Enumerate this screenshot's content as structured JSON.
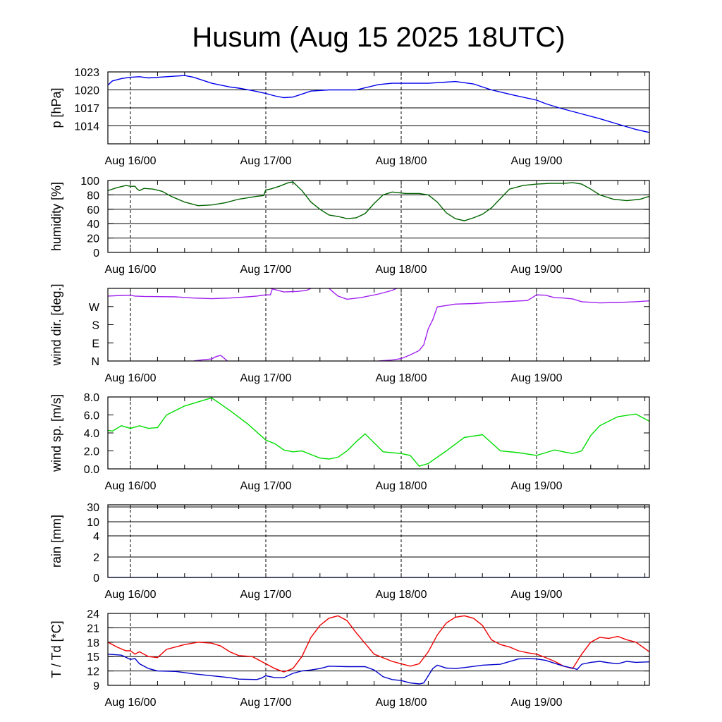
{
  "chart_data": {
    "type": "line",
    "title": "Husum (Aug 15 2025 18UTC)",
    "x_range_hours": [
      -5,
      115
    ],
    "x_ticks": [
      {
        "hour": 0,
        "label": "Aug 16/00"
      },
      {
        "hour": 30,
        "label": "Aug 17/00"
      },
      {
        "hour": 60,
        "label": "Aug 18/00"
      },
      {
        "hour": 90,
        "label": "Aug 19/00"
      }
    ],
    "panels": [
      {
        "id": "pressure",
        "ylabel": "p [hPa]",
        "ylim": [
          1011,
          1023
        ],
        "yticks": [
          {
            "v": 1023,
            "label": "1023"
          },
          {
            "v": 1020,
            "label": "1020"
          },
          {
            "v": 1017,
            "label": "1017"
          },
          {
            "v": 1014,
            "label": "1014"
          }
        ],
        "gridlines": [
          1023,
          1020,
          1017,
          1014
        ],
        "series": [
          {
            "color": "#0000ee",
            "x": [
              -5,
              -4,
              -2,
              0,
              2,
              4,
              8,
              12,
              14,
              18,
              22,
              24,
              27,
              30,
              32,
              34,
              36,
              40,
              44,
              50,
              55,
              58,
              62,
              66,
              72,
              76,
              80,
              85,
              90,
              92,
              95,
              100,
              104,
              108,
              112,
              115
            ],
            "y": [
              1020.8,
              1021.5,
              1021.9,
              1022.1,
              1022.2,
              1022.0,
              1022.2,
              1022.4,
              1022.1,
              1021.1,
              1020.5,
              1020.3,
              1019.9,
              1019.4,
              1019.0,
              1018.7,
              1018.8,
              1019.8,
              1020.0,
              1020.0,
              1020.9,
              1021.1,
              1021.1,
              1021.1,
              1021.4,
              1021.0,
              1020.0,
              1019.1,
              1018.3,
              1017.7,
              1017.0,
              1016.0,
              1015.2,
              1014.3,
              1013.4,
              1012.9
            ]
          }
        ]
      },
      {
        "id": "humidity",
        "ylabel": "humidity [%]",
        "ylim": [
          0,
          100
        ],
        "yticks": [
          {
            "v": 100,
            "label": "100"
          },
          {
            "v": 80,
            "label": "80"
          },
          {
            "v": 60,
            "label": "60"
          },
          {
            "v": 40,
            "label": "40"
          },
          {
            "v": 20,
            "label": "20"
          },
          {
            "v": 0,
            "label": "0"
          }
        ],
        "gridlines": [
          100,
          80,
          60,
          40,
          20
        ],
        "series": [
          {
            "color": "#006400",
            "x": [
              -5,
              -3,
              -1,
              0,
              1,
              1.5,
              2,
              3,
              5,
              7,
              9,
              12,
              15,
              18,
              21,
              24,
              28,
              29.5,
              30,
              31,
              33,
              35,
              36,
              38,
              40,
              42,
              44,
              46,
              48,
              50,
              52,
              54,
              56,
              58,
              61,
              64,
              66,
              68,
              70,
              72,
              74,
              76,
              78,
              80,
              82,
              84,
              87,
              90,
              93,
              96,
              98,
              100,
              102,
              104,
              107,
              110,
              113,
              115
            ],
            "y": [
              86,
              90,
              93,
              92,
              92,
              88,
              86,
              89,
              88,
              85,
              78,
              70,
              65,
              66,
              69,
              74,
              78,
              79,
              87,
              88,
              92,
              97,
              98,
              86,
              70,
              60,
              52,
              50,
              47,
              48,
              54,
              68,
              80,
              84,
              82,
              82,
              80,
              70,
              55,
              47,
              44,
              48,
              53,
              62,
              75,
              88,
              93,
              95,
              96,
              96,
              97,
              95,
              88,
              80,
              74,
              72,
              74,
              78
            ]
          }
        ]
      },
      {
        "id": "wind_direction",
        "ylabel": "wind dir. [deg.]",
        "ylim": [
          0,
          360
        ],
        "yticks": [
          {
            "v": 270,
            "label": "W"
          },
          {
            "v": 180,
            "label": "S"
          },
          {
            "v": 90,
            "label": "E"
          },
          {
            "v": 0,
            "label": "N"
          }
        ],
        "gridlines": [],
        "series": [
          {
            "color": "#a020f0",
            "x": [
              -5,
              -2,
              0,
              1,
              3,
              6,
              10,
              14,
              18,
              22,
              26,
              28,
              29,
              30,
              31,
              31.5
            ],
            "y": [
              322,
              325,
              326,
              322,
              320,
              319,
              318,
              312,
              309,
              312,
              318,
              322,
              325,
              328,
              328,
              360
            ]
          },
          {
            "color": "#a020f0",
            "x": [
              14,
              16,
              18,
              19,
              20,
              21.5
            ],
            "y": [
              0,
              6,
              10,
              22,
              28,
              0
            ]
          },
          {
            "color": "#a020f0",
            "x": [
              44,
              45,
              46,
              48,
              51,
              55,
              58,
              59
            ],
            "y": [
              360,
              340,
              322,
              306,
              314,
              332,
              350,
              360
            ]
          },
          {
            "color": "#a020f0",
            "x": [
              31,
              34,
              37,
              39,
              40
            ],
            "y": [
              360,
              342,
              345,
              350,
              360
            ]
          },
          {
            "color": "#a020f0",
            "x": [
              55,
              58,
              60,
              62,
              64,
              65,
              66,
              67,
              68,
              70,
              72,
              76,
              80,
              84,
              88,
              90,
              92,
              94,
              96,
              98,
              100,
              104,
              108,
              112,
              115
            ],
            "y": [
              0,
              5,
              12,
              30,
              52,
              80,
              160,
              205,
              268,
              275,
              282,
              285,
              290,
              295,
              300,
              328,
              326,
              314,
              312,
              308,
              294,
              288,
              290,
              294,
              298
            ]
          }
        ]
      },
      {
        "id": "wind_speed",
        "ylabel": "wind sp. [m/s]",
        "ylim": [
          0,
          8
        ],
        "yticks": [
          {
            "v": 8,
            "label": "8.0"
          },
          {
            "v": 6,
            "label": "6.0"
          },
          {
            "v": 4,
            "label": "4.0"
          },
          {
            "v": 2,
            "label": "2.0"
          },
          {
            "v": 0,
            "label": "0.0"
          }
        ],
        "gridlines": [],
        "series": [
          {
            "color": "#00dd00",
            "x": [
              -5,
              -4,
              -2,
              0,
              2,
              4,
              6,
              8,
              12,
              16,
              18,
              22,
              26,
              30,
              32,
              34,
              36,
              38,
              40,
              42,
              44,
              46,
              48,
              50,
              52,
              56,
              60,
              62,
              64,
              66,
              70,
              74,
              78,
              82,
              86,
              90,
              92,
              94,
              96,
              98,
              100,
              102,
              104,
              108,
              112,
              115
            ],
            "y": [
              4.3,
              4.2,
              4.8,
              4.5,
              4.8,
              4.5,
              4.6,
              6.0,
              7.0,
              7.6,
              7.9,
              6.5,
              5.0,
              3.2,
              2.8,
              2.1,
              1.9,
              2.0,
              1.6,
              1.2,
              1.1,
              1.3,
              2.0,
              3.0,
              3.9,
              1.9,
              1.7,
              1.5,
              0.3,
              0.6,
              2.0,
              3.5,
              3.8,
              2.0,
              1.8,
              1.5,
              1.8,
              2.1,
              1.9,
              1.7,
              2.0,
              3.7,
              4.8,
              5.8,
              6.1,
              5.3
            ]
          }
        ]
      },
      {
        "id": "rain",
        "ylabel": "rain [mm]",
        "ylim": [
          0,
          30
        ],
        "yticks": [
          {
            "v": 30,
            "label": "30"
          },
          {
            "v": 10,
            "label": "10"
          },
          {
            "v": 4,
            "label": "4"
          },
          {
            "v": 2,
            "label": "2"
          },
          {
            "v": 0,
            "label": "0"
          }
        ],
        "gridlines": [
          30,
          10,
          4,
          2
        ],
        "series": [
          {
            "color": "#0000ee",
            "x": [
              -5,
              115
            ],
            "y": [
              0,
              0
            ]
          }
        ]
      },
      {
        "id": "temperature",
        "ylabel": "T / Td [*C]",
        "ylim": [
          9,
          24
        ],
        "yticks": [
          {
            "v": 24,
            "label": "24"
          },
          {
            "v": 21,
            "label": "21"
          },
          {
            "v": 18,
            "label": "18"
          },
          {
            "v": 15,
            "label": "15"
          },
          {
            "v": 12,
            "label": "12"
          },
          {
            "v": 9,
            "label": "9"
          }
        ],
        "gridlines": [
          24,
          21,
          18,
          15,
          12
        ],
        "series": [
          {
            "color": "#ee0000",
            "x": [
              -5,
              -3,
              -1,
              0,
              1,
              2,
              4,
              6,
              8,
              12,
              15,
              18,
              20,
              22,
              24,
              27,
              30,
              32,
              34,
              36,
              38,
              40,
              42,
              44,
              46,
              48,
              50,
              54,
              58,
              60,
              62,
              64,
              66,
              68,
              70,
              72,
              74,
              76,
              78,
              80,
              82,
              84,
              86,
              88,
              90,
              92,
              94,
              96,
              98,
              100,
              102,
              104,
              106,
              108,
              110,
              112,
              115
            ],
            "y": [
              18,
              17,
              16.2,
              16.2,
              15.5,
              16.0,
              15.0,
              14.8,
              16.5,
              17.5,
              18.0,
              17.8,
              17.2,
              16.0,
              15.2,
              15.0,
              13.5,
              12.5,
              11.8,
              12.5,
              15.0,
              19.0,
              21.5,
              23.0,
              23.5,
              22.5,
              20.0,
              15.5,
              14.0,
              13.5,
              13.0,
              13.5,
              16.0,
              19.5,
              22.0,
              23.2,
              23.5,
              23.0,
              21.5,
              18.5,
              17.5,
              17.0,
              16.2,
              15.8,
              15.5,
              14.8,
              14.0,
              13.0,
              12.5,
              15.5,
              18.0,
              19.0,
              18.8,
              19.2,
              18.5,
              18.0,
              16.0
            ]
          },
          {
            "color": "#0000cc",
            "x": [
              -5,
              -2,
              0,
              1,
              2,
              4,
              6,
              10,
              14,
              18,
              22,
              24,
              28,
              29,
              30,
              32,
              34,
              36,
              38,
              40,
              42,
              44,
              48,
              52,
              54,
              56,
              58,
              60,
              62,
              64,
              65,
              66,
              67,
              68,
              70,
              72,
              74,
              78,
              82,
              86,
              88,
              90,
              92,
              94,
              96,
              98,
              99,
              100,
              102,
              104,
              106,
              108,
              110,
              112,
              115
            ],
            "y": [
              15.5,
              15.3,
              14.4,
              14.6,
              13.5,
              12.5,
              12.0,
              11.9,
              11.4,
              11.0,
              10.6,
              10.3,
              10.2,
              10.5,
              11.0,
              10.6,
              10.6,
              11.5,
              12.0,
              12.2,
              12.5,
              13.0,
              12.9,
              12.9,
              12.2,
              10.8,
              10.2,
              10.0,
              9.5,
              9.3,
              9.5,
              11.0,
              12.5,
              13.2,
              12.6,
              12.5,
              12.7,
              13.2,
              13.4,
              14.5,
              14.6,
              14.5,
              14.2,
              13.6,
              13.0,
              12.6,
              12.3,
              13.4,
              13.8,
              14.0,
              13.7,
              13.5,
              14.0,
              13.8,
              13.9
            ]
          }
        ]
      }
    ]
  }
}
